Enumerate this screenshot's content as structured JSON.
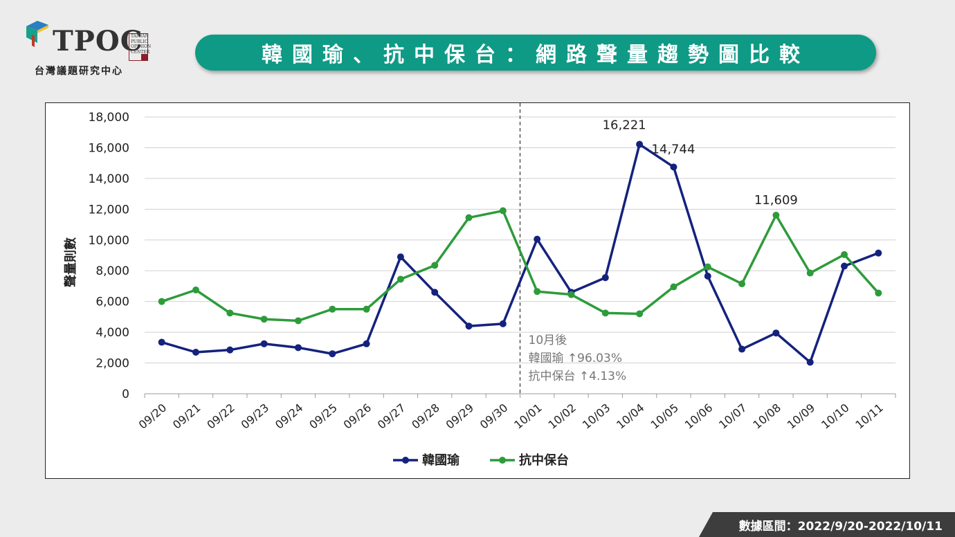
{
  "logo": {
    "name": "TPOC",
    "side_lines": [
      "TAIWAN",
      "PUBLIC",
      "OPINION",
      "CENTER"
    ],
    "caption": "台灣議題研究中心"
  },
  "title": "韓國瑜、抗中保台：網路聲量趨勢圖比較",
  "footer": "數據區間：2022/9/20-2022/10/11",
  "colors": {
    "banner": "#0f9a86",
    "series_1": "#14227e",
    "series_2": "#2e9b3b"
  },
  "chart_data": {
    "type": "line",
    "ylabel": "聲量則數",
    "ylim": [
      0,
      18000
    ],
    "yticks": [
      0,
      2000,
      4000,
      6000,
      8000,
      10000,
      12000,
      14000,
      16000,
      18000
    ],
    "ytick_labels": [
      "0",
      "2,000",
      "4,000",
      "6,000",
      "8,000",
      "10,000",
      "12,000",
      "14,000",
      "16,000",
      "18,000"
    ],
    "grid": true,
    "legend": "bottom",
    "categories": [
      "09/20",
      "09/21",
      "09/22",
      "09/23",
      "09/24",
      "09/25",
      "09/26",
      "09/27",
      "09/28",
      "09/29",
      "09/30",
      "10/01",
      "10/02",
      "10/03",
      "10/04",
      "10/05",
      "10/06",
      "10/07",
      "10/08",
      "10/09",
      "10/10",
      "10/11"
    ],
    "series": [
      {
        "name": "韓國瑜",
        "values": [
          3350,
          2700,
          2850,
          3250,
          3000,
          2600,
          3250,
          8900,
          6600,
          4400,
          4550,
          10050,
          6600,
          7550,
          16221,
          14744,
          7650,
          2900,
          3950,
          2050,
          8300,
          9150
        ]
      },
      {
        "name": "抗中保台",
        "values": [
          6000,
          6750,
          5250,
          4850,
          4750,
          5500,
          5500,
          7450,
          8350,
          11450,
          11900,
          6650,
          6450,
          5250,
          5200,
          6950,
          8250,
          7150,
          11609,
          7850,
          9050,
          6550
        ]
      }
    ],
    "data_labels": [
      {
        "series": 0,
        "index": 14,
        "text": "16,221"
      },
      {
        "series": 0,
        "index": 15,
        "text": "14,744"
      },
      {
        "series": 1,
        "index": 18,
        "text": "11,609"
      }
    ],
    "marker_line": {
      "after_category": "09/30"
    },
    "annotation": [
      "10月後",
      "韓國瑜 ↑96.03%",
      "抗中保台 ↑4.13%"
    ]
  }
}
